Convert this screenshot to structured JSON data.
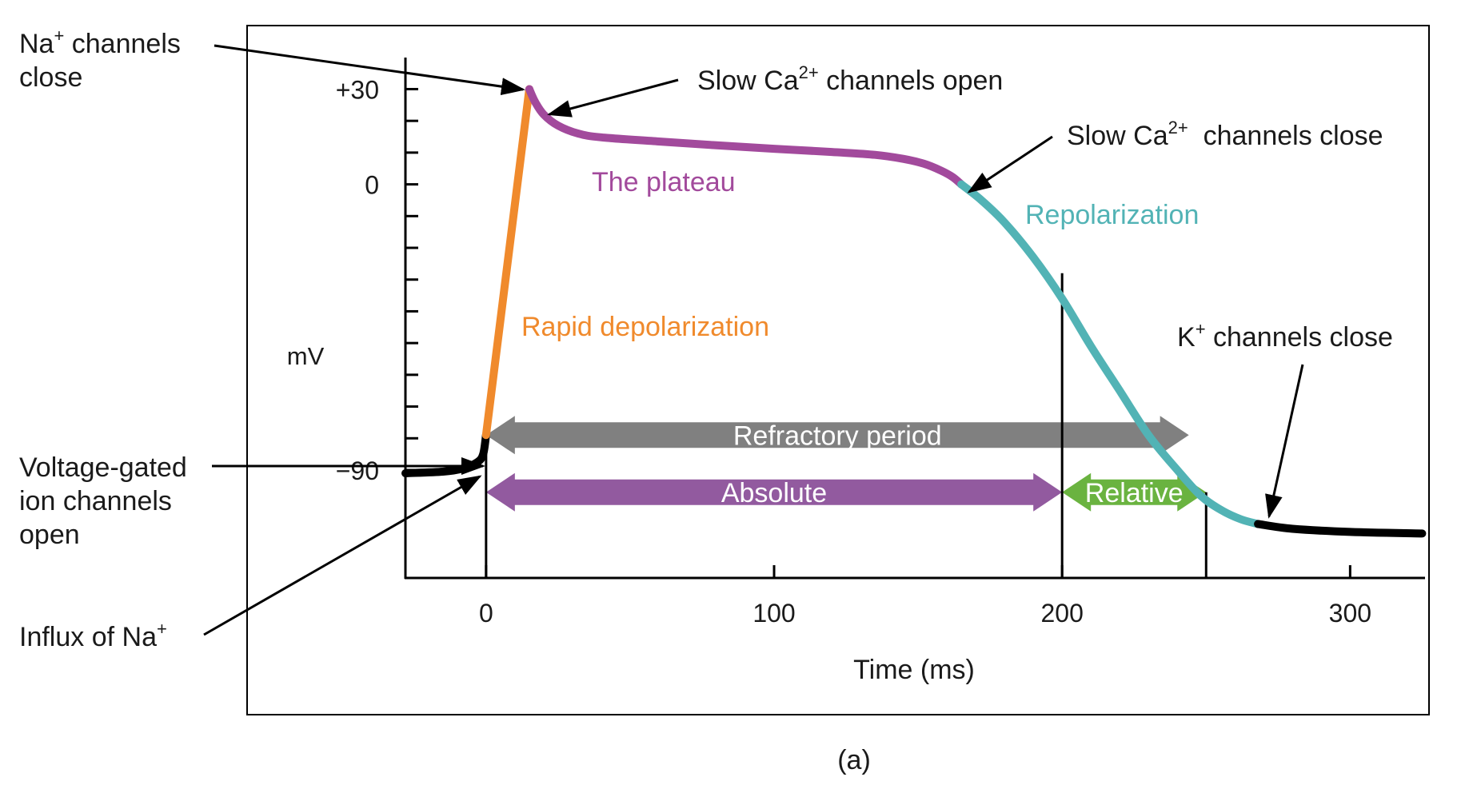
{
  "figure_label": "(a)",
  "chart_data": {
    "type": "line",
    "xlabel": "Time (ms)",
    "ylabel": "mV",
    "xlim": [
      -28,
      326
    ],
    "ylim": [
      -124,
      48
    ],
    "x_ticks": [
      0,
      100,
      200,
      300
    ],
    "y_tick_labels": [
      {
        "value": 30,
        "label": "+30"
      },
      {
        "value": 0,
        "label": "0"
      },
      {
        "value": -90,
        "label": "−90"
      }
    ],
    "y_minor_ticks": [
      30,
      20,
      10,
      0,
      -10,
      -20,
      -30,
      -40,
      -50,
      -60,
      -70,
      -80,
      -90
    ],
    "grid": false,
    "colors": {
      "resting": "#000000",
      "depolarization": "#f08a2c",
      "plateau": "#a24a9c",
      "repolarization": "#52b3b5",
      "refractory": "#808080",
      "absolute": "#925a9f",
      "relative": "#6ab340",
      "axis": "#000000"
    },
    "series": [
      {
        "key": "resting_start",
        "color_key": "resting",
        "points": [
          [
            -28,
            -91
          ],
          [
            -15,
            -90.5
          ],
          [
            -8,
            -89.5
          ],
          [
            -3,
            -87.5
          ],
          [
            -1,
            -85
          ],
          [
            0,
            -79
          ]
        ]
      },
      {
        "key": "rapid_depolarization",
        "color_key": "depolarization",
        "label": "Rapid depolarization",
        "points": [
          [
            0,
            -79
          ],
          [
            15,
            30
          ]
        ]
      },
      {
        "key": "plateau",
        "color_key": "plateau",
        "label": "The plateau",
        "points": [
          [
            15,
            30
          ],
          [
            17,
            26
          ],
          [
            20,
            22
          ],
          [
            25,
            18.5
          ],
          [
            32,
            16
          ],
          [
            40,
            14.8
          ],
          [
            60,
            13.5
          ],
          [
            80,
            12.3
          ],
          [
            100,
            11.2
          ],
          [
            120,
            10.2
          ],
          [
            135,
            9.3
          ],
          [
            145,
            8
          ],
          [
            152,
            6.5
          ],
          [
            158,
            4.3
          ],
          [
            162,
            2.3
          ],
          [
            165,
            0
          ]
        ]
      },
      {
        "key": "repolarization",
        "color_key": "repolarization",
        "label": "Repolarization",
        "points": [
          [
            165,
            0
          ],
          [
            172,
            -5
          ],
          [
            180,
            -12
          ],
          [
            190,
            -23
          ],
          [
            200,
            -36
          ],
          [
            210,
            -51
          ],
          [
            220,
            -65
          ],
          [
            230,
            -79
          ],
          [
            240,
            -90
          ],
          [
            248,
            -98
          ],
          [
            255,
            -102.5
          ],
          [
            262,
            -105.5
          ],
          [
            268,
            -107
          ]
        ]
      },
      {
        "key": "resting_end",
        "color_key": "resting",
        "points": [
          [
            268,
            -107
          ],
          [
            280,
            -108.5
          ],
          [
            300,
            -109.5
          ],
          [
            325,
            -110
          ]
        ]
      }
    ],
    "periods": [
      {
        "key": "refractory",
        "label": "Refractory period",
        "start": 0,
        "end": 244,
        "y": -79,
        "color_key": "refractory"
      },
      {
        "key": "absolute",
        "label": "Absolute",
        "start": 0,
        "end": 200,
        "y": -97,
        "color_key": "absolute"
      },
      {
        "key": "relative",
        "label": "Relative",
        "start": 200,
        "end": 250,
        "y": -97,
        "color_key": "relative"
      }
    ],
    "vertical_markers": [
      {
        "x": 0,
        "y_top": -79
      },
      {
        "x": 200,
        "y_top": -28
      },
      {
        "x": 250,
        "y_top": -97
      }
    ],
    "annotations": {
      "na_close": {
        "line1": "Na",
        "sup1": "+",
        "rest1": " channels",
        "line2": "close"
      },
      "ca_open": {
        "pre": "Slow Ca",
        "sup": "2+",
        "post": " channels open"
      },
      "ca_close": {
        "pre": "Slow Ca",
        "sup": "2+",
        "post": "  channels close"
      },
      "k_close": {
        "pre": "K",
        "sup": "+",
        "post": " channels close"
      },
      "voltage_gated": {
        "line1": "Voltage-gated",
        "line2": "ion channels",
        "line3": "open"
      },
      "na_influx": {
        "pre": "Influx of Na",
        "sup": "+"
      }
    }
  }
}
